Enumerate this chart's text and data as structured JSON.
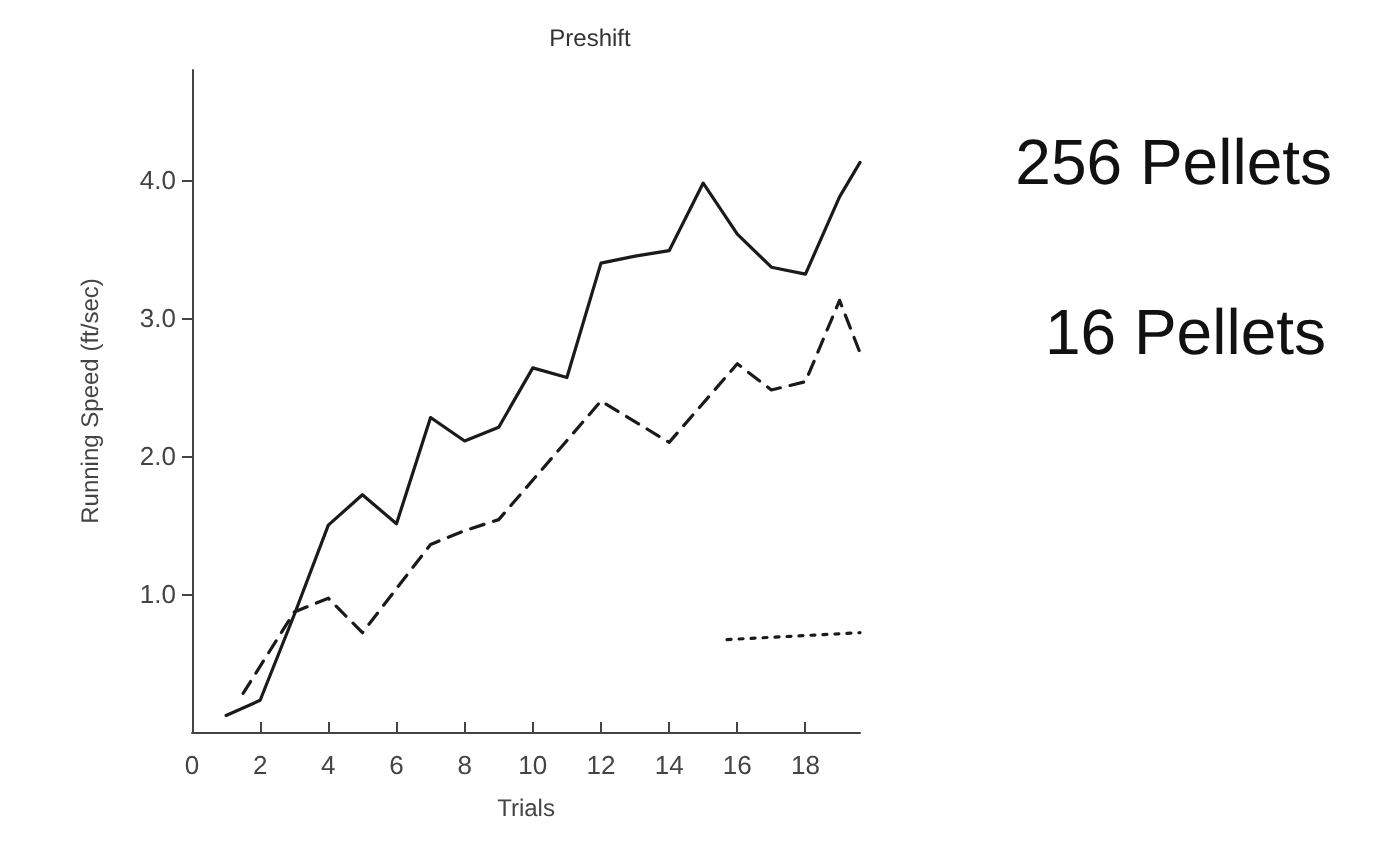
{
  "chart_data": {
    "type": "line",
    "title": "Preshift",
    "xlabel": "Trials",
    "ylabel": "Running Speed (ft/sec)",
    "annotations": [
      "256 Pellets",
      "16 Pellets"
    ],
    "xlim": [
      0,
      19.6
    ],
    "xticks": [
      0,
      2,
      4,
      6,
      8,
      10,
      12,
      14,
      16,
      18
    ],
    "ylim": [
      0,
      4.8
    ],
    "yticks": [
      {
        "value": 1,
        "label": "1.0"
      },
      {
        "value": 2,
        "label": "2.0"
      },
      {
        "value": 3,
        "label": "3.0"
      },
      {
        "value": 4,
        "label": "4.0"
      }
    ],
    "grid": false,
    "marker": "none",
    "series": [
      {
        "color": "#1a1a1a",
        "line_style": "solid",
        "x": [
          1,
          2,
          3,
          4,
          5,
          6,
          7,
          8,
          9,
          10,
          11,
          12,
          13,
          14,
          15,
          16,
          17,
          18,
          19,
          19.6
        ],
        "values": [
          0.12,
          0.23,
          0.85,
          1.5,
          1.72,
          1.51,
          2.28,
          2.11,
          2.21,
          2.64,
          2.57,
          3.4,
          3.45,
          3.49,
          3.98,
          3.61,
          3.37,
          3.32,
          3.88,
          4.13
        ]
      },
      {
        "color": "#1a1a1a",
        "line_style": "dashed",
        "x": [
          1.5,
          3,
          4,
          5,
          7,
          8,
          9,
          12,
          14,
          16,
          17,
          18,
          19,
          19.6
        ],
        "values": [
          0.28,
          0.87,
          0.97,
          0.72,
          1.36,
          1.46,
          1.54,
          2.4,
          2.1,
          2.67,
          2.48,
          2.54,
          3.13,
          2.75
        ]
      },
      {
        "color": "#1a1a1a",
        "line_style": "dotted",
        "x": [
          15.7,
          19.6
        ],
        "values": [
          0.67,
          0.72
        ]
      }
    ]
  }
}
